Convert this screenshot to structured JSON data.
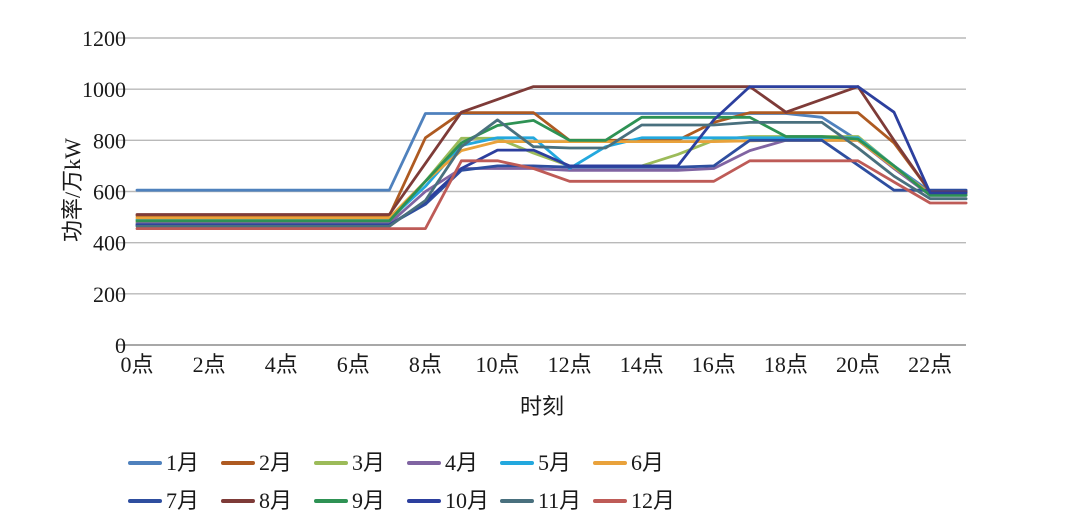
{
  "chart_data": {
    "type": "line",
    "title": "",
    "xlabel": "时刻",
    "ylabel": "功率/万kW",
    "x": [
      0,
      1,
      2,
      3,
      4,
      5,
      6,
      7,
      8,
      9,
      10,
      11,
      12,
      13,
      14,
      15,
      16,
      17,
      18,
      19,
      20,
      21,
      22,
      23
    ],
    "x_tick_labels": [
      "0点",
      "2点",
      "4点",
      "6点",
      "8点",
      "10点",
      "12点",
      "14点",
      "16点",
      "18点",
      "20点",
      "22点"
    ],
    "x_tick_hours": [
      0,
      2,
      4,
      6,
      8,
      10,
      12,
      14,
      16,
      18,
      20,
      22
    ],
    "y_ticks": [
      0,
      200,
      400,
      600,
      800,
      1000,
      1200
    ],
    "ylim": [
      0,
      1200
    ],
    "grid": "horizontal",
    "gridline_color": "#b9b9b9",
    "baseline_color": "#8c8c8c",
    "legend_position": "bottom",
    "series": [
      {
        "name": "1月",
        "color": "#4F81BD",
        "values": [
          605,
          605,
          605,
          605,
          605,
          605,
          605,
          605,
          905,
          905,
          905,
          905,
          905,
          905,
          905,
          905,
          905,
          905,
          905,
          890,
          800,
          700,
          600,
          600
        ]
      },
      {
        "name": "2月",
        "color": "#AE5A21",
        "values": [
          505,
          505,
          505,
          505,
          505,
          505,
          505,
          505,
          810,
          908,
          908,
          908,
          800,
          800,
          800,
          800,
          870,
          908,
          908,
          908,
          908,
          790,
          600,
          600
        ]
      },
      {
        "name": "3月",
        "color": "#9CBB59",
        "values": [
          480,
          480,
          480,
          480,
          480,
          480,
          480,
          480,
          640,
          808,
          808,
          750,
          700,
          700,
          700,
          745,
          800,
          815,
          815,
          815,
          815,
          700,
          588,
          588
        ]
      },
      {
        "name": "4月",
        "color": "#8064A2",
        "values": [
          475,
          475,
          475,
          475,
          475,
          475,
          475,
          475,
          600,
          690,
          690,
          690,
          683,
          683,
          683,
          683,
          690,
          760,
          800,
          800,
          800,
          690,
          585,
          585
        ]
      },
      {
        "name": "5月",
        "color": "#23A8DE",
        "values": [
          490,
          490,
          490,
          490,
          490,
          490,
          490,
          490,
          620,
          780,
          810,
          810,
          690,
          775,
          810,
          810,
          810,
          810,
          810,
          810,
          810,
          700,
          590,
          590
        ]
      },
      {
        "name": "6月",
        "color": "#E9A23B",
        "values": [
          497,
          497,
          497,
          497,
          497,
          497,
          497,
          497,
          640,
          760,
          795,
          795,
          795,
          795,
          795,
          795,
          795,
          798,
          800,
          800,
          800,
          695,
          592,
          592
        ]
      },
      {
        "name": "7月",
        "color": "#2E4E9F",
        "values": [
          470,
          470,
          470,
          470,
          470,
          470,
          470,
          470,
          550,
          683,
          700,
          700,
          695,
          695,
          695,
          695,
          700,
          800,
          800,
          800,
          703,
          605,
          605,
          605
        ]
      },
      {
        "name": "8月",
        "color": "#7E3B38",
        "values": [
          510,
          510,
          510,
          510,
          510,
          510,
          510,
          510,
          710,
          910,
          960,
          1010,
          1010,
          1010,
          1010,
          1010,
          1010,
          1010,
          910,
          960,
          1010,
          800,
          598,
          598
        ]
      },
      {
        "name": "9月",
        "color": "#2E9254",
        "values": [
          485,
          485,
          485,
          485,
          485,
          485,
          485,
          485,
          640,
          790,
          858,
          878,
          800,
          800,
          890,
          890,
          890,
          890,
          815,
          815,
          805,
          700,
          585,
          585
        ]
      },
      {
        "name": "10月",
        "color": "#2C3F9E",
        "values": [
          468,
          468,
          468,
          468,
          468,
          468,
          468,
          468,
          560,
          690,
          762,
          762,
          700,
          700,
          700,
          700,
          880,
          1010,
          1010,
          1010,
          1010,
          910,
          595,
          595
        ]
      },
      {
        "name": "11月",
        "color": "#49707E",
        "values": [
          464,
          464,
          464,
          464,
          464,
          464,
          464,
          464,
          565,
          775,
          880,
          775,
          770,
          770,
          860,
          860,
          860,
          870,
          870,
          870,
          770,
          660,
          572,
          572
        ]
      },
      {
        "name": "12月",
        "color": "#BE5B57",
        "values": [
          455,
          455,
          455,
          455,
          455,
          455,
          455,
          455,
          455,
          720,
          720,
          690,
          640,
          640,
          640,
          640,
          640,
          720,
          720,
          720,
          720,
          637,
          555,
          555
        ]
      }
    ]
  }
}
